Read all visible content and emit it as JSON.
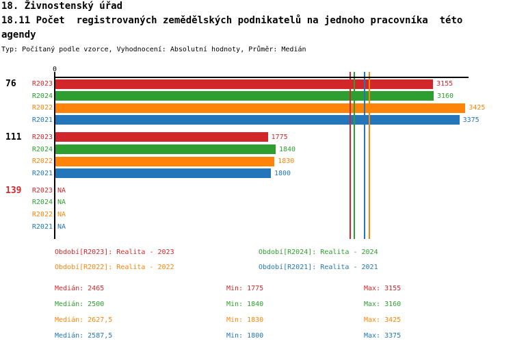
{
  "header": {
    "title_line1": "18. Živnostenský úřad",
    "title_line2": "18.11 Počet  registrovaných zemědělských podnikatelů na jednoho pracovníka  této",
    "title_line3": "agendy",
    "meta": "Typ: Počítaný podle vzorce, Vyhodnocení: Absolutní hodnoty, Průměr: Medián"
  },
  "chart_data": {
    "type": "bar",
    "orientation": "horizontal",
    "axis": {
      "origin_label": "0",
      "min": 0,
      "max_visible": 3460,
      "grid": false
    },
    "series_colors": {
      "R2023": "#d2272a",
      "R2024": "#2d9e2f",
      "R2022": "#fd8408",
      "R2021": "#2276b9"
    },
    "groups": [
      {
        "label": "76",
        "label_color": "#000000",
        "rows": [
          {
            "series": "R2023",
            "value": 3155,
            "display": "3155"
          },
          {
            "series": "R2024",
            "value": 3160,
            "display": "3160"
          },
          {
            "series": "R2022",
            "value": 3425,
            "display": "3425"
          },
          {
            "series": "R2021",
            "value": 3375,
            "display": "3375"
          }
        ]
      },
      {
        "label": "111",
        "label_color": "#000000",
        "rows": [
          {
            "series": "R2023",
            "value": 1775,
            "display": "1775"
          },
          {
            "series": "R2024",
            "value": 1840,
            "display": "1840"
          },
          {
            "series": "R2022",
            "value": 1830,
            "display": "1830"
          },
          {
            "series": "R2021",
            "value": 1800,
            "display": "1800"
          }
        ]
      },
      {
        "label": "139",
        "label_color": "#d2272a",
        "rows": [
          {
            "series": "R2023",
            "value": null,
            "display": "NA"
          },
          {
            "series": "R2024",
            "value": null,
            "display": "NA"
          },
          {
            "series": "R2022",
            "value": null,
            "display": "NA"
          },
          {
            "series": "R2021",
            "value": null,
            "display": "NA"
          }
        ]
      }
    ],
    "median_lines": [
      {
        "series": "R2023",
        "value": 2465
      },
      {
        "series": "R2024",
        "value": 2500
      },
      {
        "series": "R2021",
        "value": 2587.5
      },
      {
        "series": "R2022",
        "value": 2627.5
      }
    ]
  },
  "legend": {
    "items": [
      {
        "text": "Období[R2023]: Realita - 2023",
        "color": "#d2272a"
      },
      {
        "text": "Období[R2024]: Realita - 2024",
        "color": "#2d9e2f"
      },
      {
        "text": "Období[R2022]: Realita - 2022",
        "color": "#fd8408"
      },
      {
        "text": "Období[R2021]: Realita - 2021",
        "color": "#2276b9"
      }
    ]
  },
  "stats": {
    "rows": [
      {
        "median": "Medián: 2465",
        "min": "Min: 1775",
        "max": "Max: 3155",
        "color": "#d2272a"
      },
      {
        "median": "Medián: 2500",
        "min": "Min: 1840",
        "max": "Max: 3160",
        "color": "#2d9e2f"
      },
      {
        "median": "Medián: 2627,5",
        "min": "Min: 1830",
        "max": "Max: 3425",
        "color": "#fd8408"
      },
      {
        "median": "Medián: 2587,5",
        "min": "Min: 1800",
        "max": "Max: 3375",
        "color": "#2276b9"
      }
    ]
  }
}
